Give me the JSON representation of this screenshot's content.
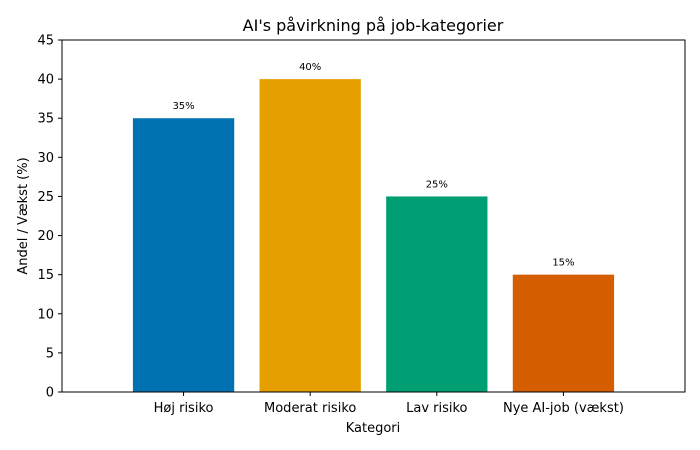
{
  "chart_data": {
    "type": "bar",
    "title": "AI's påvirkning på job-kategorier",
    "xlabel": "Kategori",
    "ylabel": "Andel / Vækst (%)",
    "categories": [
      "Høj risiko",
      "Moderat risiko",
      "Lav risiko",
      "Nye AI-job (vækst)"
    ],
    "values": [
      35,
      40,
      25,
      15
    ],
    "data_labels": [
      "35%",
      "40%",
      "25%",
      "15%"
    ],
    "colors": [
      "#0072b2",
      "#e69f00",
      "#009e73",
      "#d55e00"
    ],
    "ylim": [
      0,
      45
    ],
    "yticks": [
      0,
      5,
      10,
      15,
      20,
      25,
      30,
      35,
      40,
      45
    ],
    "grid": false,
    "legend": "none"
  }
}
